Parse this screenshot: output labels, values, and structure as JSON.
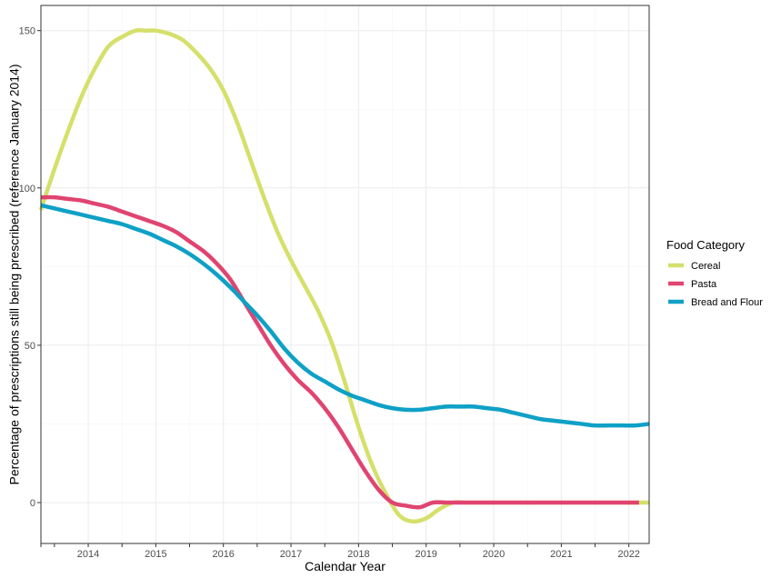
{
  "chart_data": {
    "type": "line",
    "xlabel": "Calendar Year",
    "ylabel": "Percentage of prescriptions still being prescribed (reference January 2014)",
    "xlim": [
      2013.3,
      2022.3
    ],
    "ylim": [
      -13,
      158
    ],
    "x_ticks": [
      {
        "value": 2014,
        "label": "2014"
      },
      {
        "value": 2015,
        "label": "2015"
      },
      {
        "value": 2016,
        "label": "2016"
      },
      {
        "value": 2017,
        "label": "2017"
      },
      {
        "value": 2018,
        "label": "2018"
      },
      {
        "value": 2019,
        "label": "2019"
      },
      {
        "value": 2020,
        "label": "2020"
      },
      {
        "value": 2021,
        "label": "2021"
      },
      {
        "value": 2022,
        "label": "2022"
      }
    ],
    "y_ticks": [
      {
        "value": 0,
        "label": "0"
      },
      {
        "value": 50,
        "label": "50"
      },
      {
        "value": 100,
        "label": "100"
      },
      {
        "value": 150,
        "label": "150"
      }
    ],
    "grid": true,
    "legend": {
      "title": "Food Category",
      "position": "right"
    },
    "series": [
      {
        "name": "Cereal",
        "color": "#d4e06a",
        "x": [
          2013.3,
          2013.5,
          2013.7,
          2013.9,
          2014.1,
          2014.3,
          2014.5,
          2014.7,
          2014.85,
          2015.0,
          2015.2,
          2015.4,
          2015.6,
          2015.8,
          2016.0,
          2016.2,
          2016.4,
          2016.6,
          2016.8,
          2017.0,
          2017.2,
          2017.4,
          2017.6,
          2017.8,
          2018.0,
          2018.2,
          2018.4,
          2018.6,
          2018.8,
          2019.0,
          2019.2,
          2019.4,
          2019.6,
          2019.8,
          2020.0,
          2020.5,
          2021.0,
          2021.5,
          2022.0,
          2022.3
        ],
        "y": [
          93,
          106,
          118,
          129,
          138,
          145,
          148,
          150,
          150,
          150,
          149,
          147,
          143,
          138,
          131,
          121,
          109,
          97,
          86,
          77,
          69,
          61,
          51,
          38,
          24,
          12,
          3,
          -4,
          -6,
          -5,
          -2,
          0,
          0,
          0,
          0,
          0,
          0,
          0,
          0,
          0
        ]
      },
      {
        "name": "Pasta",
        "color": "#e04470",
        "x": [
          2013.3,
          2013.5,
          2013.7,
          2013.9,
          2014.1,
          2014.3,
          2014.5,
          2014.7,
          2014.9,
          2015.1,
          2015.3,
          2015.5,
          2015.7,
          2015.9,
          2016.1,
          2016.3,
          2016.5,
          2016.7,
          2016.9,
          2017.1,
          2017.3,
          2017.5,
          2017.7,
          2017.9,
          2018.1,
          2018.3,
          2018.5,
          2018.7,
          2018.9,
          2019.1,
          2019.3,
          2019.5,
          2019.8,
          2020.0,
          2020.5,
          2021.0,
          2021.5,
          2022.0,
          2022.15
        ],
        "y": [
          97,
          97,
          96.5,
          96,
          95,
          94,
          92.5,
          91,
          89.5,
          88,
          86,
          83,
          80,
          76,
          71,
          64,
          57,
          50,
          44,
          39,
          35,
          30,
          24,
          17,
          10,
          4,
          0,
          -1,
          -1.5,
          0,
          0,
          0,
          0,
          0,
          0,
          0,
          0,
          0,
          0
        ]
      },
      {
        "name": "Bread and Flour",
        "color": "#0fa0c6",
        "x": [
          2013.3,
          2013.5,
          2013.7,
          2013.9,
          2014.1,
          2014.3,
          2014.5,
          2014.7,
          2014.9,
          2015.1,
          2015.3,
          2015.5,
          2015.7,
          2015.9,
          2016.1,
          2016.3,
          2016.5,
          2016.7,
          2016.9,
          2017.1,
          2017.3,
          2017.5,
          2017.7,
          2017.9,
          2018.1,
          2018.3,
          2018.5,
          2018.7,
          2018.9,
          2019.1,
          2019.3,
          2019.5,
          2019.7,
          2019.9,
          2020.1,
          2020.3,
          2020.5,
          2020.7,
          2020.9,
          2021.1,
          2021.3,
          2021.5,
          2021.7,
          2021.9,
          2022.1,
          2022.3
        ],
        "y": [
          94.5,
          93.5,
          92.5,
          91.5,
          90.5,
          89.5,
          88.5,
          87,
          85.5,
          83.5,
          81.5,
          79,
          76,
          72.5,
          68.5,
          64,
          59.5,
          54.5,
          49,
          44.5,
          41,
          38.5,
          36,
          34,
          32.5,
          31,
          30,
          29.5,
          29.5,
          30,
          30.5,
          30.5,
          30.5,
          30,
          29.5,
          28.5,
          27.5,
          26.5,
          26,
          25.5,
          25,
          24.5,
          24.5,
          24.5,
          24.5,
          25
        ]
      }
    ]
  }
}
